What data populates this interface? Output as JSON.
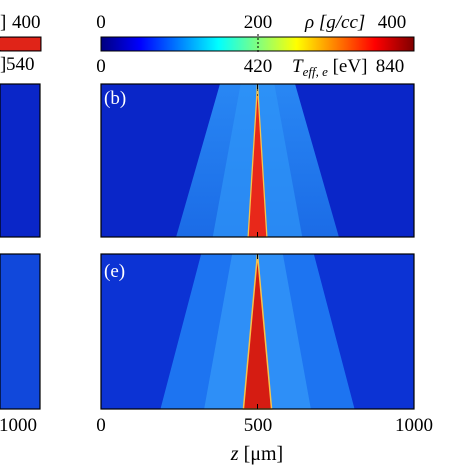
{
  "colors": {
    "jet_stops": [
      "#00007f",
      "#0000ff",
      "#0080ff",
      "#00ffff",
      "#80ff80",
      "#ffff00",
      "#ff8000",
      "#ff0000",
      "#7f0000"
    ],
    "background_blue": "#0b2bd0",
    "fan_blue": "#1f78f2",
    "spike_red": "#e8281a",
    "spike_edge": "#f6c24a"
  },
  "chart_data": [
    {
      "type": "heatmap",
      "panel": "left-edge-top",
      "title": "",
      "xlabel": "",
      "ylabel": "",
      "colorbars": [
        {
          "quantity": "rho",
          "label_fragment": "]",
          "max_label": "400"
        },
        {
          "quantity": "Teff_e",
          "max_label": "540"
        }
      ]
    },
    {
      "type": "heatmap",
      "panel": "left-edge-bottom",
      "x_tick_label_right": "1000"
    },
    {
      "type": "heatmap",
      "panel": "(b)",
      "xlim": [
        0,
        1000
      ],
      "colorbars": [
        {
          "quantity": "rho",
          "label": "ρ [g/cc]",
          "ticks": [
            0,
            200,
            400
          ],
          "tick_labels": [
            "0",
            "200",
            "400"
          ],
          "dashed_marker": 200
        },
        {
          "quantity": "Teff_e",
          "label": "T_eff,e [eV]",
          "ticks": [
            0,
            420,
            840
          ],
          "tick_labels": [
            "0",
            "420",
            "840"
          ]
        }
      ],
      "features": {
        "spike_center_um": 500,
        "spike_base_halfwidth_um": 30,
        "fan_halfwidth_top_um": 120,
        "fan_halfwidth_bottom_um": 260
      }
    },
    {
      "type": "heatmap",
      "panel": "(e)",
      "xlim": [
        0,
        1000
      ],
      "x_ticks": [
        0,
        500,
        1000
      ],
      "x_tick_labels": [
        "0",
        "500",
        "1000"
      ],
      "xlabel": "z [μm]",
      "features": {
        "spike_center_um": 500,
        "spike_base_halfwidth_um": 45,
        "fan_halfwidth_top_um": 180,
        "fan_halfwidth_bottom_um": 310
      }
    }
  ],
  "labels": {
    "top_left_fragment": "]",
    "top_left_max": "400",
    "second_left_fragment": "]",
    "second_left_max": "540",
    "bottom_left_tick": "1000",
    "rho_label": "ρ [g/cc]",
    "rho_ticks": [
      "0",
      "200",
      "400"
    ],
    "teff_symbol": "T",
    "teff_subscript": "eff, e",
    "teff_unit": " [eV]",
    "teff_ticks": [
      "0",
      "420",
      "840"
    ],
    "panel_b": "(b)",
    "panel_e": "(e)",
    "x_ticks": [
      "0",
      "500",
      "1000"
    ],
    "xlabel_var": "z",
    "xlabel_unit": " [μm]"
  }
}
